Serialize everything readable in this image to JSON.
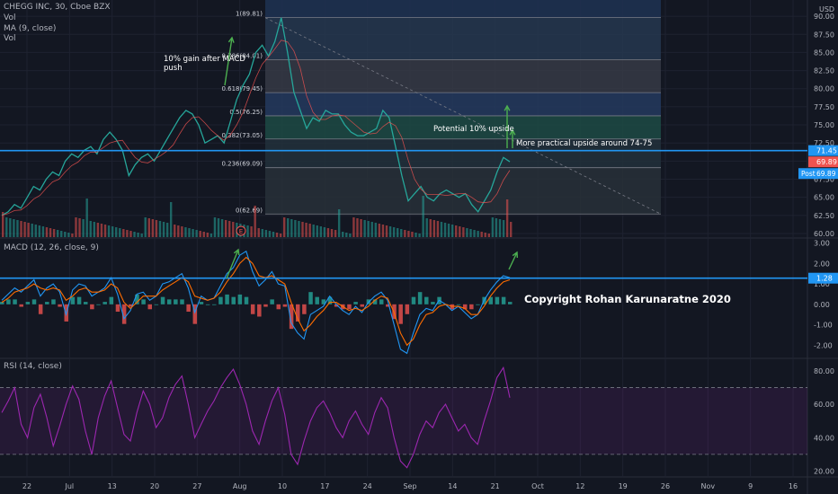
{
  "header": {
    "symbol": "CHEGG INC, 30, Cboe BZX",
    "vol_label": "Vol",
    "ma_label": "MA (9, close)",
    "vol_label2": "Vol",
    "currency": "USD"
  },
  "colors": {
    "background": "#131722",
    "up": "#26a69a",
    "down": "#ef5350",
    "price_line": "#2196f3",
    "macd_line": "#2196f3",
    "signal_line": "#ff6d00",
    "rsi_line": "#9c27b0",
    "arrow": "#4caf50",
    "annotation_text": "#ffffff",
    "axis_text": "#b2b5be"
  },
  "price_pane": {
    "yticks": [
      "90.00",
      "87.50",
      "85.00",
      "82.50",
      "80.00",
      "77.50",
      "75.00",
      "72.50",
      "70.00",
      "67.50",
      "65.00",
      "62.50",
      "60.00"
    ],
    "last_price": "69.89",
    "level_label": "71.45",
    "post_label": "Post",
    "post_price": "69.89",
    "earnings_marker": "E"
  },
  "fib": {
    "levels": [
      {
        "ratio": "1",
        "price": "89.81",
        "label": "1(89.81)",
        "fill": "#26374f"
      },
      {
        "ratio": "0.786",
        "price": "84.01",
        "label": "0.786(84.01)",
        "fill": "#363a45"
      },
      {
        "ratio": "0.618",
        "price": "79.45",
        "label": "0.618(79.45)",
        "fill": "#253a5e"
      },
      {
        "ratio": "0.5",
        "price": "76.25",
        "label": "0.5(76.25)",
        "fill": "#1d4a44"
      },
      {
        "ratio": "0.382",
        "price": "73.05",
        "label": "0.382(73.05)",
        "fill": "#22303b"
      },
      {
        "ratio": "0.236",
        "price": "69.09",
        "label": "0.236(69.09)",
        "fill": "#283038"
      },
      {
        "ratio": "0",
        "price": "62.69",
        "label": "0(62.69)",
        "fill": "#4a2328"
      }
    ]
  },
  "annotations": {
    "macd_push": "10% gain after MACD push",
    "potential": "Potential 10% upside",
    "practical": "More practical upside around 74-75",
    "copyright": "Copyright Rohan Karunaratne 2020"
  },
  "macd_pane": {
    "label": "MACD (12, 26, close, 9)",
    "yticks": [
      "3.00",
      "2.00",
      "1.00",
      "0.00",
      "-1.00",
      "-2.00"
    ],
    "level_label": "1.28"
  },
  "rsi_pane": {
    "label": "RSI (14, close)",
    "yticks": [
      "80.00",
      "60.00",
      "40.00",
      "20.00"
    ]
  },
  "xaxis": {
    "labels": [
      "22",
      "Jul",
      "13",
      "20",
      "27",
      "Aug",
      "10",
      "17",
      "24",
      "Sep",
      "14",
      "21",
      "Oct",
      "12",
      "19",
      "26",
      "Nov",
      "9",
      "16"
    ]
  },
  "chart_data": {
    "type": "line",
    "series": [
      {
        "values": [
          62.5,
          63,
          64,
          63.5,
          65,
          66.5,
          66,
          67.5,
          68.5,
          68,
          70,
          71,
          70.5,
          71.5,
          72,
          71,
          73,
          74,
          73,
          71.5,
          68,
          69.5,
          70.5,
          71,
          70,
          71.5,
          73,
          74.5,
          76,
          77,
          76.5,
          75,
          72.5,
          73,
          73.5,
          72.5,
          75.5,
          78.5,
          80.5,
          82,
          85,
          86,
          84.5,
          86.5,
          89.8,
          85,
          79.5,
          77,
          74.5,
          76,
          75.5,
          77,
          76.5,
          76.5,
          75,
          74,
          73.5,
          73.5,
          74,
          74.5,
          77,
          76,
          72,
          68,
          64.5,
          65.5,
          66.5,
          65,
          64.5,
          65.5,
          66,
          65.5,
          65,
          65.5,
          64,
          63,
          64.5,
          66,
          68.5,
          70.5,
          69.9
        ]
      }
    ],
    "fib_levels": [
      89.81,
      84.01,
      79.45,
      76.25,
      73.05,
      69.09,
      62.69
    ],
    "horizontal_line": 71.45,
    "ylim": [
      59.5,
      91.5
    ],
    "macd": {
      "macd": [
        0.2,
        0.5,
        0.8,
        0.6,
        0.9,
        1.2,
        0.4,
        0.8,
        1.0,
        0.6,
        -0.5,
        0.7,
        1.0,
        0.9,
        0.4,
        0.6,
        0.8,
        1.3,
        0.5,
        -0.7,
        -0.3,
        0.5,
        0.6,
        0.2,
        0.4,
        1.0,
        1.1,
        1.3,
        1.5,
        0.8,
        -0.4,
        0.4,
        0.2,
        0.3,
        0.9,
        1.5,
        1.8,
        2.4,
        2.6,
        1.6,
        0.9,
        1.2,
        1.6,
        1.0,
        0.9,
        -0.9,
        -1.4,
        -1.7,
        -0.5,
        -0.3,
        -0.1,
        0.4,
        0.0,
        -0.3,
        -0.5,
        -0.1,
        -0.4,
        0.1,
        0.4,
        0.6,
        0.2,
        -1.0,
        -2.2,
        -2.4,
        -1.4,
        -0.5,
        -0.2,
        -0.3,
        0.2,
        0.0,
        -0.3,
        -0.1,
        -0.4,
        -0.7,
        -0.5,
        0.2,
        0.7,
        1.1,
        1.4,
        1.3
      ],
      "signal": [
        0.1,
        0.3,
        0.6,
        0.7,
        0.8,
        1.0,
        0.8,
        0.7,
        0.8,
        0.7,
        0.2,
        0.4,
        0.7,
        0.8,
        0.6,
        0.6,
        0.7,
        1.0,
        0.8,
        0.1,
        -0.2,
        0.1,
        0.4,
        0.4,
        0.4,
        0.7,
        0.9,
        1.1,
        1.3,
        1.1,
        0.4,
        0.3,
        0.2,
        0.3,
        0.6,
        1.1,
        1.5,
        2.0,
        2.3,
        2.0,
        1.4,
        1.3,
        1.4,
        1.2,
        1.0,
        0.1,
        -0.7,
        -1.3,
        -1.0,
        -0.6,
        -0.3,
        0.1,
        0.1,
        -0.1,
        -0.3,
        -0.2,
        -0.3,
        -0.1,
        0.2,
        0.4,
        0.3,
        -0.4,
        -1.4,
        -2.0,
        -1.7,
        -1.0,
        -0.5,
        -0.4,
        -0.1,
        0.0,
        -0.1,
        -0.1,
        -0.2,
        -0.5,
        -0.5,
        -0.1,
        0.4,
        0.8,
        1.1,
        1.2
      ],
      "ylim": [
        -2.6,
        3.2
      ]
    },
    "rsi": {
      "values": [
        55,
        62,
        70,
        48,
        40,
        58,
        66,
        52,
        35,
        47,
        60,
        71,
        63,
        44,
        30,
        52,
        65,
        74,
        58,
        42,
        38,
        55,
        68,
        60,
        46,
        52,
        64,
        72,
        77,
        60,
        40,
        48,
        56,
        62,
        70,
        76,
        81,
        72,
        60,
        44,
        36,
        50,
        62,
        70,
        54,
        30,
        24,
        38,
        50,
        58,
        62,
        55,
        46,
        40,
        50,
        56,
        48,
        42,
        55,
        64,
        58,
        40,
        26,
        22,
        30,
        42,
        50,
        46,
        55,
        60,
        52,
        44,
        48,
        40,
        36,
        50,
        62,
        76,
        82,
        64
      ],
      "upper": 70,
      "lower": 30,
      "ylim": [
        17,
        87
      ]
    }
  }
}
